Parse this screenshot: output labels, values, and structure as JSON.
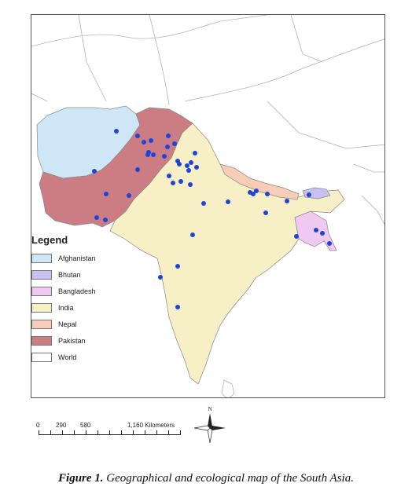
{
  "map": {
    "region": "South Asia",
    "countries": [
      {
        "name": "Afghanistan",
        "fill": "#cfe6f7"
      },
      {
        "name": "Bhutan",
        "fill": "#c9bff0"
      },
      {
        "name": "Bangladesh",
        "fill": "#f0c9f3"
      },
      {
        "name": "India",
        "fill": "#f7efc6"
      },
      {
        "name": "Nepal",
        "fill": "#f8cdb8"
      },
      {
        "name": "Pakistan",
        "fill": "#cc7d84"
      },
      {
        "name": "World",
        "fill": "#ffffff"
      }
    ],
    "point_color": "#1f45d6",
    "sample_point_count": 45
  },
  "legend": {
    "title": "Legend",
    "items": [
      {
        "label": "Afghanistan",
        "color": "#cfe6f7"
      },
      {
        "label": "Bhutan",
        "color": "#c9bff0"
      },
      {
        "label": "Bangladesh",
        "color": "#f0c9f3"
      },
      {
        "label": "India",
        "color": "#f7efc6"
      },
      {
        "label": "Nepal",
        "color": "#f8cdb8"
      },
      {
        "label": "Pakistan",
        "color": "#cc7d84"
      },
      {
        "label": "World",
        "color": "#ffffff"
      }
    ]
  },
  "scalebar": {
    "labels": [
      "0",
      "290",
      "580",
      "1,160 Kilometers"
    ]
  },
  "compass": {
    "north_label": "N"
  },
  "caption": {
    "label": "Figure 1.",
    "text": "Geographical and ecological map of the South Asia."
  }
}
